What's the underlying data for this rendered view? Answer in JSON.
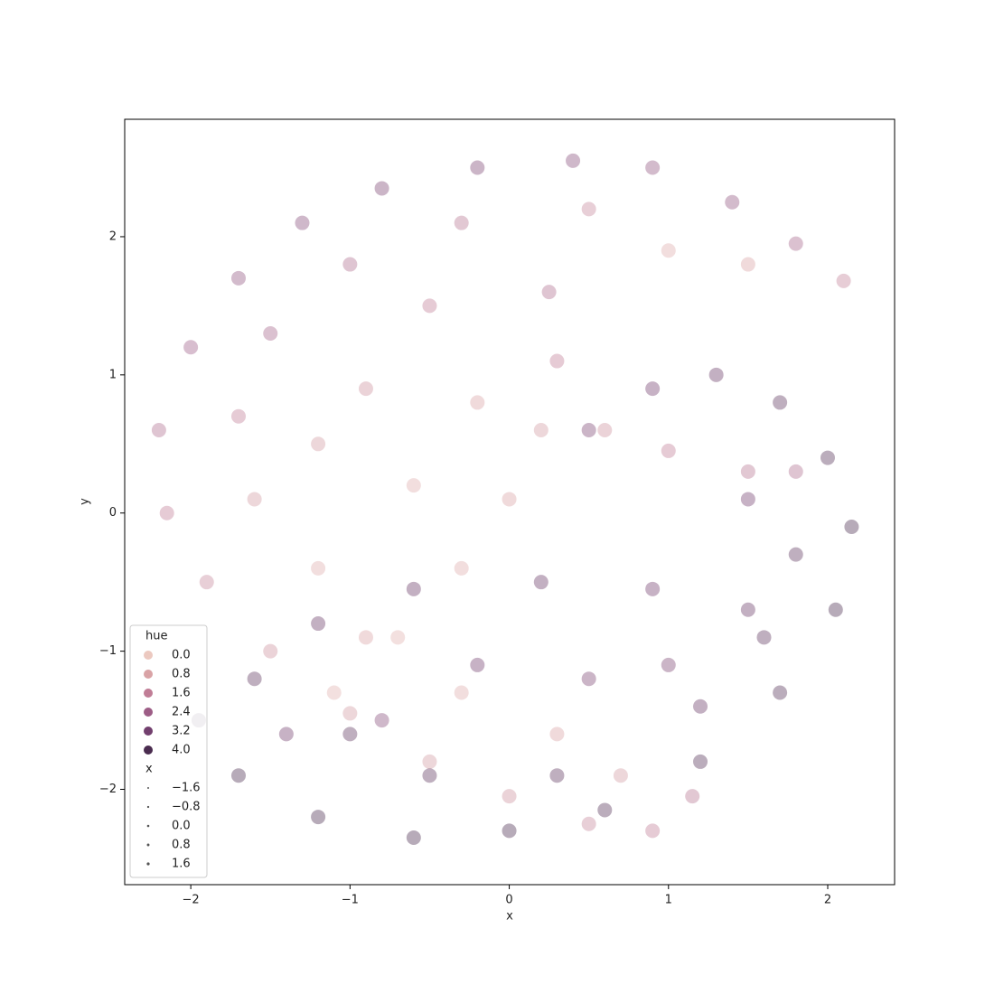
{
  "chart_data": {
    "type": "scatter",
    "xlabel": "x",
    "ylabel": "y",
    "xlim": [
      -2.415,
      2.42
    ],
    "ylim": [
      -2.69,
      2.85
    ],
    "xticks": [
      {
        "value": -2,
        "label": "−2"
      },
      {
        "value": -1,
        "label": "−1"
      },
      0,
      1,
      2
    ],
    "yticks": [
      {
        "value": -2,
        "label": "−2"
      },
      {
        "value": -1,
        "label": "−1"
      },
      0,
      1,
      2
    ],
    "points": {
      "x": [
        2.1,
        1.8,
        1.4,
        0.9,
        0.4,
        -0.2,
        -0.8,
        -1.3,
        -1.7,
        -2.0,
        -2.2,
        -2.15,
        -1.9,
        -1.5,
        -1.0,
        -0.5,
        0.0,
        0.5,
        0.9,
        1.15,
        1.5,
        1.0,
        0.5,
        -0.3,
        -1.0,
        -1.5,
        -1.7,
        -1.6,
        -1.2,
        -0.9,
        -0.5,
        -0.2,
        -0.6,
        -1.2,
        -0.9,
        -0.3,
        0.3,
        0.7,
        0.25,
        0.3,
        0.2,
        0.0,
        -0.3,
        -0.7,
        -1.1,
        0.6,
        1.0,
        1.5,
        1.8,
        -1.95,
        -1.7,
        -1.2,
        -0.6,
        0.0,
        0.6,
        1.2,
        1.7,
        2.05,
        2.15,
        2.0,
        1.7,
        1.3,
        0.9,
        0.5,
        -1.6,
        -1.2,
        -0.6,
        0.2,
        0.9,
        1.5,
        1.8,
        1.5,
        1.0,
        0.5,
        -0.2,
        -1.0,
        -0.5,
        0.3,
        1.2,
        1.6,
        -1.4,
        -0.8
      ],
      "y": [
        1.68,
        1.95,
        2.25,
        2.5,
        2.55,
        2.5,
        2.35,
        2.1,
        1.7,
        1.2,
        0.6,
        0.0,
        -0.5,
        -1.0,
        -1.45,
        -1.8,
        -2.05,
        -2.25,
        -2.3,
        -2.05,
        1.8,
        1.9,
        2.2,
        2.1,
        1.8,
        1.3,
        0.7,
        0.1,
        -0.4,
        0.9,
        1.5,
        0.8,
        0.2,
        0.5,
        -0.9,
        -1.3,
        -1.6,
        -1.9,
        1.6,
        1.1,
        0.6,
        0.1,
        -0.4,
        -0.9,
        -1.3,
        0.6,
        0.45,
        0.3,
        0.3,
        -1.5,
        -1.9,
        -2.2,
        -2.35,
        -2.3,
        -2.15,
        -1.8,
        -1.3,
        -0.7,
        -0.1,
        0.4,
        0.8,
        1.0,
        0.9,
        0.6,
        -1.2,
        -0.8,
        -0.55,
        -0.5,
        -0.55,
        -0.7,
        -0.3,
        0.1,
        -1.1,
        -1.2,
        -1.1,
        -1.6,
        -1.9,
        -1.9,
        -1.4,
        -0.9,
        -1.6,
        -1.5
      ],
      "hue": [
        1.5,
        2.2,
        2.6,
        2.6,
        2.8,
        3.0,
        3.0,
        2.8,
        2.6,
        2.4,
        2.0,
        1.6,
        1.4,
        1.2,
        1.0,
        1.0,
        1.2,
        1.4,
        1.6,
        1.8,
        0.8,
        0.6,
        1.4,
        1.8,
        2.0,
        2.2,
        1.6,
        1.0,
        0.6,
        1.2,
        1.6,
        0.8,
        0.6,
        1.0,
        0.8,
        0.6,
        0.8,
        1.0,
        2.0,
        1.6,
        1.0,
        0.8,
        0.6,
        0.5,
        0.5,
        1.2,
        1.6,
        1.8,
        2.0,
        3.8,
        4.0,
        4.0,
        4.0,
        4.0,
        3.8,
        3.8,
        3.8,
        4.0,
        4.0,
        3.8,
        3.6,
        3.4,
        3.2,
        3.0,
        3.6,
        3.4,
        3.4,
        3.4,
        3.2,
        3.4,
        3.6,
        3.2,
        3.0,
        3.0,
        3.2,
        3.6,
        3.6,
        3.6,
        3.4,
        3.6,
        3.2,
        2.8
      ]
    },
    "legend": {
      "loc": "lower left",
      "hue_title": "hue",
      "size_title": "x",
      "hue_entries": [
        {
          "value": 0,
          "label": "0.0",
          "color": "#ecc9c0"
        },
        {
          "value": 0.8,
          "label": "0.8",
          "color": "#d9a3a6"
        },
        {
          "value": 1.6,
          "label": "1.6",
          "color": "#c07d96"
        },
        {
          "value": 2.4,
          "label": "2.4",
          "color": "#9d5d86"
        },
        {
          "value": 3.2,
          "label": "3.2",
          "color": "#723f6e"
        },
        {
          "value": 4,
          "label": "4.0",
          "color": "#4a2c4f"
        }
      ],
      "size_entries": [
        {
          "value": -1.6,
          "label": "−1.6"
        },
        {
          "value": -0.8,
          "label": "−0.8"
        },
        {
          "value": 0,
          "label": "0.0"
        },
        {
          "value": 0.8,
          "label": "0.8"
        },
        {
          "value": 1.6,
          "label": "1.6"
        }
      ]
    }
  }
}
